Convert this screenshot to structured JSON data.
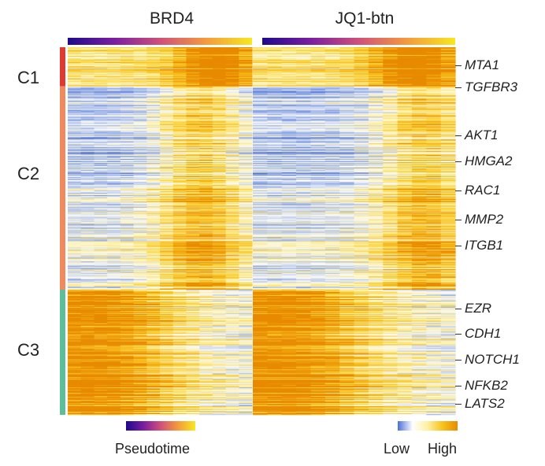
{
  "chart_data": {
    "type": "heatmap",
    "title": "",
    "columns": [
      "BRD4",
      "JQ1-btn"
    ],
    "clusters": [
      {
        "name": "C1",
        "color": "#e03a30",
        "rows": 50
      },
      {
        "name": "C2",
        "color": "#f08a5e",
        "rows": 260
      },
      {
        "name": "C3",
        "color": "#5dbf9a",
        "rows": 160
      }
    ],
    "pseudotime_bar": {
      "label": "Pseudotime",
      "colors": [
        "#1e0a8c",
        "#7a1ea0",
        "#d0507a",
        "#f59a3c",
        "#f7e81f"
      ]
    },
    "expression_scale": {
      "low_label": "Low",
      "high_label": "High",
      "colors": [
        "#4c6fd8",
        "#ffffff",
        "#fff0a0",
        "#f7c21a",
        "#e88a00"
      ]
    },
    "genes": [
      {
        "name": "MTA1",
        "row_fraction": 0.05
      },
      {
        "name": "TGFBR3",
        "row_fraction": 0.11
      },
      {
        "name": "AKT1",
        "row_fraction": 0.24
      },
      {
        "name": "HMGA2",
        "row_fraction": 0.31
      },
      {
        "name": "RAC1",
        "row_fraction": 0.39
      },
      {
        "name": "MMP2",
        "row_fraction": 0.47
      },
      {
        "name": "ITGB1",
        "row_fraction": 0.54
      },
      {
        "name": "EZR",
        "row_fraction": 0.71
      },
      {
        "name": "CDH1",
        "row_fraction": 0.78
      },
      {
        "name": "NOTCH1",
        "row_fraction": 0.85
      },
      {
        "name": "NFKB2",
        "row_fraction": 0.92
      },
      {
        "name": "LATS2",
        "row_fraction": 0.97
      }
    ]
  }
}
